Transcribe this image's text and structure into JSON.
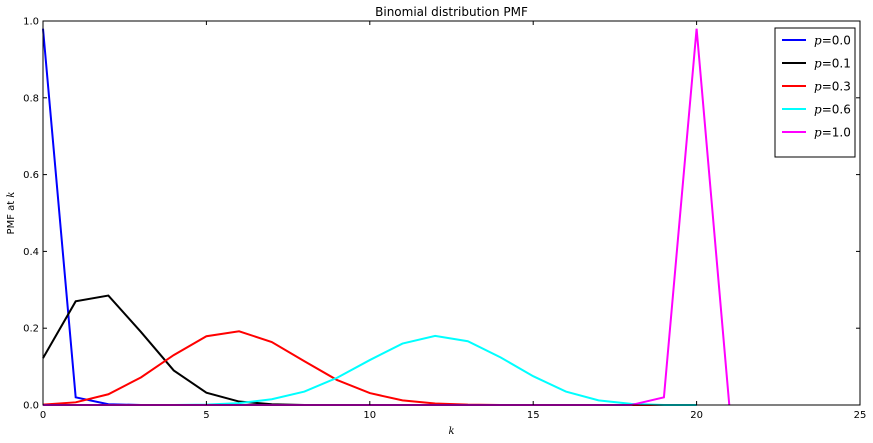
{
  "chart_data": {
    "type": "line",
    "title": "Binomial distribution PMF",
    "xlabel": "k",
    "ylabel_prefix": "PMF at ",
    "ylabel_var": "k",
    "xlim": [
      0,
      25
    ],
    "ylim": [
      0,
      1.0
    ],
    "xticks": [
      0,
      5,
      10,
      15,
      20,
      25
    ],
    "yticks": [
      0.0,
      0.2,
      0.4,
      0.6,
      0.8,
      1.0
    ],
    "xtick_labels": [
      "0",
      "5",
      "10",
      "15",
      "20",
      "25"
    ],
    "ytick_labels": [
      "0.0",
      "0.2",
      "0.4",
      "0.6",
      "0.8",
      "1.0"
    ],
    "grid": false,
    "legend_position": "top-right",
    "series": [
      {
        "name": "p=0.0",
        "label_var": "p",
        "label_value": "=0.0",
        "color": "#0000ff",
        "x": [
          0,
          1,
          2,
          3,
          4,
          5,
          6,
          7,
          8,
          9,
          10,
          11,
          12,
          13,
          14,
          15,
          16,
          17,
          18,
          19,
          20
        ],
        "y": [
          0.98,
          0.02,
          0.002,
          0,
          0,
          0,
          0,
          0,
          0,
          0,
          0,
          0,
          0,
          0,
          0,
          0,
          0,
          0,
          0,
          0,
          0
        ]
      },
      {
        "name": "p=0.1",
        "label_var": "p",
        "label_value": "=0.1",
        "color": "#000000",
        "x": [
          0,
          1,
          2,
          3,
          4,
          5,
          6,
          7,
          8,
          9,
          10,
          11,
          12,
          13,
          14,
          15,
          16,
          17,
          18,
          19,
          20
        ],
        "y": [
          0.122,
          0.27,
          0.285,
          0.19,
          0.09,
          0.032,
          0.009,
          0.002,
          0,
          0,
          0,
          0,
          0,
          0,
          0,
          0,
          0,
          0,
          0,
          0,
          0
        ]
      },
      {
        "name": "p=0.3",
        "label_var": "p",
        "label_value": "=0.3",
        "color": "#ff0000",
        "x": [
          0,
          1,
          2,
          3,
          4,
          5,
          6,
          7,
          8,
          9,
          10,
          11,
          12,
          13,
          14,
          15,
          16,
          17,
          18,
          19,
          20
        ],
        "y": [
          0.001,
          0.007,
          0.028,
          0.072,
          0.13,
          0.179,
          0.192,
          0.164,
          0.114,
          0.065,
          0.031,
          0.012,
          0.004,
          0.001,
          0,
          0,
          0,
          0,
          0,
          0,
          0
        ]
      },
      {
        "name": "p=0.6",
        "label_var": "p",
        "label_value": "=0.6",
        "color": "#00ffff",
        "x": [
          0,
          1,
          2,
          3,
          4,
          5,
          6,
          7,
          8,
          9,
          10,
          11,
          12,
          13,
          14,
          15,
          16,
          17,
          18,
          19,
          20
        ],
        "y": [
          0,
          0,
          0,
          0,
          0,
          0.001,
          0.005,
          0.015,
          0.035,
          0.071,
          0.117,
          0.16,
          0.18,
          0.166,
          0.124,
          0.075,
          0.035,
          0.012,
          0.003,
          0,
          0
        ]
      },
      {
        "name": "p=1.0",
        "label_var": "p",
        "label_value": "=1.0",
        "color": "#ff00ff",
        "x": [
          0,
          1,
          2,
          3,
          4,
          5,
          6,
          7,
          8,
          9,
          10,
          11,
          12,
          13,
          14,
          15,
          16,
          17,
          18,
          19,
          20,
          21
        ],
        "y": [
          0,
          0,
          0,
          0,
          0,
          0,
          0,
          0,
          0,
          0,
          0,
          0,
          0,
          0,
          0,
          0,
          0,
          0,
          0,
          0.02,
          0.98,
          0
        ]
      }
    ]
  }
}
